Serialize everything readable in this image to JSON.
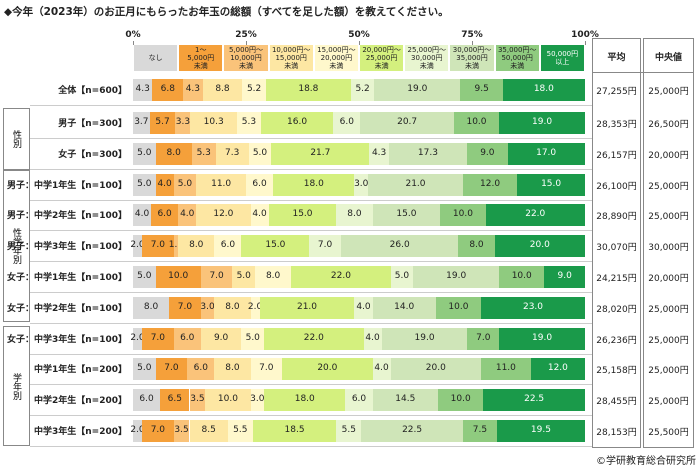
{
  "chart_data": {
    "type": "stacked-bar-horizontal",
    "title": "◆今年（2023年）のお正月にもらったお年玉の総額（すべてを足した額）を教えてください。",
    "categories": [
      "全体【n=600】",
      "男子【n=300】",
      "女子【n=300】",
      "男子：中学1年生【n=100】",
      "男子：中学2年生【n=100】",
      "男子：中学3年生【n=100】",
      "女子：中学1年生【n=100】",
      "女子：中学2年生【n=100】",
      "女子：中学3年生【n=100】",
      "中学1年生【n=200】",
      "中学2年生【n=200】",
      "中学3年生【n=200】"
    ],
    "xlim": [
      0,
      100
    ],
    "xticks": [
      {
        "value": 0,
        "label": "0%"
      },
      {
        "value": 25,
        "label": "25%"
      },
      {
        "value": 50,
        "label": "50%"
      },
      {
        "value": 75,
        "label": "75%"
      },
      {
        "value": 100,
        "label": "100%"
      }
    ],
    "groups": [
      "性別",
      "性学年別",
      "学年別"
    ],
    "series": [
      {
        "name": "なし",
        "color": "#d9d9d9",
        "values": [
          4.3,
          3.7,
          5.0,
          5.0,
          4.0,
          2.0,
          5.0,
          8.0,
          2.0,
          5.0,
          6.0,
          2.0
        ],
        "value_labels": [
          "4.3",
          "3.7",
          "5.0",
          "5.0",
          "4.0",
          "2.0",
          "5.0",
          "8.0",
          "2.0",
          "5.0",
          "6.0",
          "2.0"
        ]
      },
      {
        "name": "1〜\n5,000円\n未満",
        "color": "#f5a03a",
        "values": [
          6.8,
          5.7,
          8.0,
          4.0,
          6.0,
          7.0,
          10.0,
          7.0,
          7.0,
          7.0,
          6.5,
          7.0
        ],
        "value_labels": [
          "6.8",
          "5.7",
          "8.0",
          "4.0",
          "6.0",
          "7.0",
          "10.0",
          "7.0",
          "7.0",
          "7.0",
          "6.5",
          "7.0"
        ]
      },
      {
        "name": "5,000円〜\n10,000円\n未満",
        "color": "#fac37a",
        "values": [
          4.3,
          3.3,
          5.3,
          5.0,
          4.0,
          1.0,
          7.0,
          3.0,
          6.0,
          6.0,
          3.5,
          3.5
        ],
        "value_labels": [
          "4.3",
          "3.3",
          "5.3",
          "5.0",
          "4.0",
          "1.0",
          "7.0",
          "3.0",
          "6.0",
          "6.0",
          "3.5",
          "3.5"
        ]
      },
      {
        "name": "10,000円〜\n15,000円\n未満",
        "color": "#fde7a3",
        "values": [
          8.8,
          10.3,
          7.3,
          11.0,
          12.0,
          8.0,
          5.0,
          8.0,
          9.0,
          8.0,
          10.0,
          8.5
        ],
        "value_labels": [
          "8.8",
          "10.3",
          "7.3",
          "11.0",
          "12.0",
          "8.0",
          "5.0",
          "8.0",
          "9.0",
          "8.0",
          "10.0",
          "8.5"
        ]
      },
      {
        "name": "15,000円〜\n20,000円\n未満",
        "color": "#fff8cc",
        "values": [
          5.2,
          5.3,
          5.0,
          6.0,
          4.0,
          6.0,
          8.0,
          2.0,
          5.0,
          7.0,
          3.0,
          5.5
        ],
        "value_labels": [
          "5.2",
          "5.3",
          "5.0",
          "6.0",
          "4.0",
          "6.0",
          "8.0",
          "2.0",
          "5.0",
          "7.0",
          "3.0",
          "5.5"
        ]
      },
      {
        "name": "20,000円〜\n25,000円\n未満",
        "color": "#d4f07e",
        "values": [
          18.8,
          16.0,
          21.7,
          18.0,
          15.0,
          15.0,
          22.0,
          21.0,
          22.0,
          20.0,
          18.0,
          18.5
        ],
        "value_labels": [
          "18.8",
          "16.0",
          "21.7",
          "18.0",
          "15.0",
          "15.0",
          "22.0",
          "21.0",
          "22.0",
          "20.0",
          "18.0",
          "18.5"
        ]
      },
      {
        "name": "25,000円〜\n30,000円\n未満",
        "color": "#e8f5d0",
        "values": [
          5.2,
          6.0,
          4.3,
          3.0,
          8.0,
          7.0,
          5.0,
          4.0,
          4.0,
          4.0,
          6.0,
          5.5
        ],
        "value_labels": [
          "5.2",
          "6.0",
          "4.3",
          "3.0",
          "8.0",
          "7.0",
          "5.0",
          "4.0",
          "4.0",
          "4.0",
          "6.0",
          "5.5"
        ]
      },
      {
        "name": "30,000円〜\n35,000円\n未満",
        "color": "#cfe5b8",
        "values": [
          19.0,
          20.7,
          17.3,
          21.0,
          15.0,
          26.0,
          19.0,
          14.0,
          19.0,
          20.0,
          14.5,
          22.5
        ],
        "value_labels": [
          "19.0",
          "20.7",
          "17.3",
          "21.0",
          "15.0",
          "26.0",
          "19.0",
          "14.0",
          "19.0",
          "20.0",
          "14.5",
          "22.5"
        ]
      },
      {
        "name": "35,000円〜\n50,000円\n未満",
        "color": "#8fcb7f",
        "values": [
          9.5,
          10.0,
          9.0,
          12.0,
          10.0,
          8.0,
          10.0,
          10.0,
          7.0,
          11.0,
          10.0,
          7.5
        ],
        "value_labels": [
          "9.5",
          "10.0",
          "9.0",
          "12.0",
          "10.0",
          "8.0",
          "10.0",
          "10.0",
          "7.0",
          "11.0",
          "10.0",
          "7.5"
        ]
      },
      {
        "name": "50,000円\n以上",
        "color": "#1a9a4a",
        "values": [
          18.0,
          19.0,
          17.0,
          15.0,
          22.0,
          20.0,
          9.0,
          23.0,
          19.0,
          12.0,
          22.5,
          19.5
        ],
        "value_labels": [
          "18.0",
          "19.0",
          "17.0",
          "15.0",
          "22.0",
          "20.0",
          "9.0",
          "23.0",
          "19.0",
          "12.0",
          "22.5",
          "19.5"
        ]
      }
    ]
  },
  "table": {
    "headers": [
      "平均",
      "中央値"
    ],
    "rows": [
      [
        "27,255円",
        "25,000円"
      ],
      [
        "28,353円",
        "26,500円"
      ],
      [
        "26,157円",
        "20,000円"
      ],
      [
        "26,100円",
        "25,000円"
      ],
      [
        "28,890円",
        "25,000円"
      ],
      [
        "30,070円",
        "30,000円"
      ],
      [
        "24,215円",
        "20,000円"
      ],
      [
        "28,020円",
        "25,000円"
      ],
      [
        "26,236円",
        "25,000円"
      ],
      [
        "25,158円",
        "25,000円"
      ],
      [
        "28,455円",
        "25,000円"
      ],
      [
        "28,153円",
        "25,500円"
      ]
    ]
  },
  "footer": "©学研教育総合研究所"
}
